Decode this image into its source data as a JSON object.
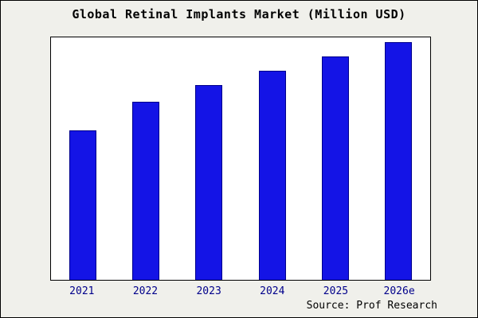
{
  "chart_data": {
    "type": "bar",
    "title": "Global Retinal Implants Market (Million USD)",
    "categories": [
      "2021",
      "2022",
      "2023",
      "2024",
      "2025",
      "2026e"
    ],
    "values": [
      63,
      75,
      82,
      88,
      94,
      100
    ],
    "xlabel": "",
    "ylabel": "",
    "ylim": [
      0,
      102
    ],
    "grid": false,
    "legend": "none",
    "bar_fill_color": "#1414e6",
    "bar_edge_color": "#00008b",
    "tick_color": "#00008b",
    "plot_background": "#ffffff",
    "figure_background": "#f0f0eb"
  },
  "source": {
    "label": "Source: Prof Research"
  }
}
